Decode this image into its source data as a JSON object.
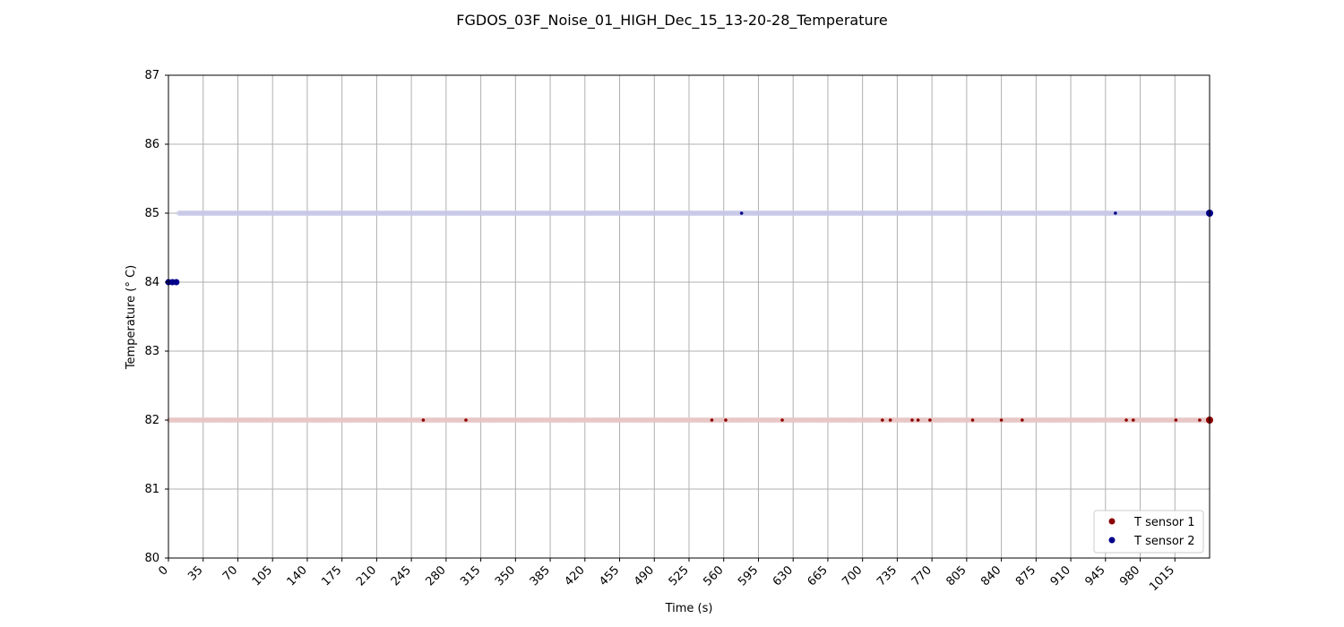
{
  "chart_data": {
    "type": "scatter",
    "title": "FGDOS_03F_Noise_01_HIGH_Dec_15_13-20-28_Temperature",
    "xlabel": "Time (s)",
    "ylabel": "Temperature (° C)",
    "xlim": [
      0,
      1050
    ],
    "ylim": [
      80,
      87
    ],
    "x_ticks": [
      "0",
      "35",
      "70",
      "105",
      "140",
      "175",
      "210",
      "245",
      "280",
      "315",
      "350",
      "385",
      "420",
      "455",
      "490",
      "525",
      "560",
      "595",
      "630",
      "665",
      "700",
      "735",
      "770",
      "805",
      "840",
      "875",
      "910",
      "945",
      "980",
      "1015"
    ],
    "y_ticks": [
      "80",
      "81",
      "82",
      "83",
      "84",
      "85",
      "86",
      "87"
    ],
    "grid": true,
    "legend_position": "bottom-right",
    "series": [
      {
        "name": "T sensor 1",
        "color": "#8b0000",
        "line_color": "#e8c4c4",
        "x_start": 0,
        "x_end": 1050,
        "x_step": 2,
        "y": 82,
        "highlight_x": [
          257,
          300,
          548,
          562,
          619,
          720,
          728,
          750,
          756,
          768,
          811,
          840,
          861,
          966,
          973,
          1016,
          1040,
          1050
        ]
      },
      {
        "name": "T sensor 2",
        "color": "#00008b",
        "line_color": "#c8c8e8",
        "x_start": 10,
        "x_end": 1050,
        "x_step": 2,
        "y": 85,
        "early_points": [
          {
            "x": 0,
            "y": 84
          },
          {
            "x": 4,
            "y": 84
          },
          {
            "x": 8,
            "y": 84
          }
        ],
        "highlight_x": [
          578,
          955,
          1050
        ]
      }
    ]
  }
}
